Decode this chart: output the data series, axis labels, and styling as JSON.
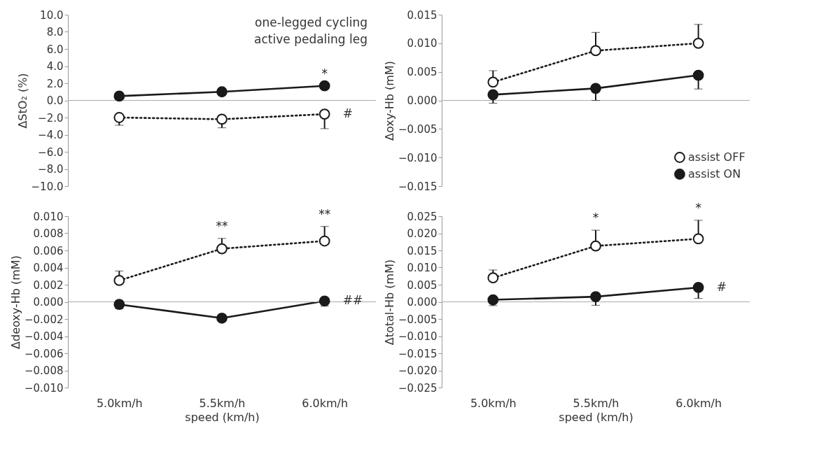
{
  "chart_data": [
    {
      "type": "line",
      "ylabel": "ΔStO₂ (%)",
      "categories": [
        "5.0km/h",
        "5.5km/h",
        "6.0km/h"
      ],
      "ylim": [
        -10,
        10
      ],
      "yticks": [
        {
          "value": -10,
          "label": "−10.0"
        },
        {
          "value": -8,
          "label": "−8.0"
        },
        {
          "value": -6,
          "label": "−6.0"
        },
        {
          "value": -4,
          "label": "−4.0"
        },
        {
          "value": -2,
          "label": "−2.0"
        },
        {
          "value": 0,
          "label": "0.0"
        },
        {
          "value": 2,
          "label": "2.0"
        },
        {
          "value": 4,
          "label": "4.0"
        },
        {
          "value": 6,
          "label": "6.0"
        },
        {
          "value": 8,
          "label": "8.0"
        },
        {
          "value": 10,
          "label": "10.0"
        }
      ],
      "series": [
        {
          "color": "#1a1a1a",
          "line_style": "dotted",
          "values": [
            -2.0,
            -2.2,
            -1.6
          ],
          "errors": [
            [
              -2.9,
              -2.0
            ],
            [
              -3.2,
              -2.2
            ],
            [
              -3.3,
              -1.6
            ]
          ]
        },
        {
          "color": "#1a1a1a",
          "line_style": "solid",
          "values": [
            0.5,
            1.0,
            1.7
          ]
        }
      ],
      "marker": "circle",
      "grid": false,
      "legend": false,
      "tick_labels": "y",
      "ref_lines": [
        {
          "axis": "y",
          "value": 0
        }
      ],
      "annotations": [
        "one-legged cycling",
        "active pedaling leg",
        {
          "text": "*",
          "x": "6.0km/h",
          "y": 1.7
        },
        {
          "text": "#",
          "x": "6.0km/h",
          "y": -1.6
        }
      ]
    },
    {
      "type": "line",
      "ylabel": "Δoxy-Hb (mM)",
      "categories": [
        "5.0km/h",
        "5.5km/h",
        "6.0km/h"
      ],
      "ylim": [
        -0.015,
        0.015
      ],
      "yticks": [
        {
          "value": -0.015,
          "label": "−0.015"
        },
        {
          "value": -0.01,
          "label": "−0.010"
        },
        {
          "value": -0.005,
          "label": "−0.005"
        },
        {
          "value": 0,
          "label": "0.000"
        },
        {
          "value": 0.005,
          "label": "0.005"
        },
        {
          "value": 0.01,
          "label": "0.010"
        },
        {
          "value": 0.015,
          "label": "0.015"
        }
      ],
      "series": [
        {
          "name": "assist OFF",
          "color": "#1a1a1a",
          "line_style": "dotted",
          "values": [
            0.0032,
            0.0087,
            0.01
          ],
          "errors": [
            [
              0.0032,
              0.0052
            ],
            [
              0.0087,
              0.0119
            ],
            [
              0.01,
              0.0133
            ]
          ]
        },
        {
          "name": "assist ON",
          "color": "#1a1a1a",
          "line_style": "solid",
          "values": [
            0.001,
            0.0021,
            0.0044
          ],
          "errors": [
            [
              -0.0005,
              0.001
            ],
            [
              0.0,
              0.0021
            ],
            [
              0.002,
              0.0044
            ]
          ]
        }
      ],
      "marker": "circle",
      "grid": false,
      "legend": "bottom right",
      "tick_labels": "y",
      "ref_lines": [
        {
          "axis": "y",
          "value": 0
        }
      ]
    },
    {
      "type": "line",
      "ylabel": "Δdeoxy-Hb (mM)",
      "xlabel": "speed (km/h)",
      "categories": [
        "5.0km/h",
        "5.5km/h",
        "6.0km/h"
      ],
      "ylim": [
        -0.01,
        0.01
      ],
      "yticks": [
        {
          "value": -0.01,
          "label": "−0.010"
        },
        {
          "value": -0.008,
          "label": "−0.008"
        },
        {
          "value": -0.006,
          "label": "−0.006"
        },
        {
          "value": -0.004,
          "label": "−0.004"
        },
        {
          "value": -0.002,
          "label": "−0.002"
        },
        {
          "value": 0,
          "label": "0.000"
        },
        {
          "value": 0.002,
          "label": "0.002"
        },
        {
          "value": 0.004,
          "label": "0.004"
        },
        {
          "value": 0.006,
          "label": "0.006"
        },
        {
          "value": 0.008,
          "label": "0.008"
        },
        {
          "value": 0.01,
          "label": "0.010"
        }
      ],
      "series": [
        {
          "color": "#1a1a1a",
          "line_style": "dotted",
          "values": [
            0.0025,
            0.0062,
            0.0071
          ],
          "errors": [
            [
              0.0025,
              0.0036
            ],
            [
              0.0062,
              0.0074
            ],
            [
              0.0071,
              0.0088
            ]
          ]
        },
        {
          "color": "#1a1a1a",
          "line_style": "solid",
          "values": [
            -0.0003,
            -0.0019,
            0.0001
          ],
          "errors": [
            [
              -0.0008,
              -0.0003
            ],
            [
              -0.0023,
              -0.0019
            ],
            [
              -0.0005,
              0.0001
            ]
          ]
        }
      ],
      "marker": "circle",
      "grid": false,
      "legend": false,
      "ref_lines": [
        {
          "axis": "y",
          "value": 0
        }
      ],
      "annotations": [
        {
          "text": "**",
          "x": "5.5km/h",
          "y": 0.0074
        },
        {
          "text": "**",
          "x": "6.0km/h",
          "y": 0.0088
        },
        {
          "text": "##",
          "x": "6.0km/h",
          "y": 0.0001
        }
      ]
    },
    {
      "type": "line",
      "ylabel": "Δtotal-Hb (mM)",
      "xlabel": "speed (km/h)",
      "categories": [
        "5.0km/h",
        "5.5km/h",
        "6.0km/h"
      ],
      "ylim": [
        -0.025,
        0.025
      ],
      "yticks": [
        {
          "value": -0.025,
          "label": "−0.025"
        },
        {
          "value": -0.02,
          "label": "−0.020"
        },
        {
          "value": -0.015,
          "label": "−0.015"
        },
        {
          "value": -0.01,
          "label": "−0.010"
        },
        {
          "value": -0.005,
          "label": "−0.005"
        },
        {
          "value": 0,
          "label": "0.000"
        },
        {
          "value": 0.005,
          "label": "0.005"
        },
        {
          "value": 0.01,
          "label": "0.010"
        },
        {
          "value": 0.015,
          "label": "0.015"
        },
        {
          "value": 0.02,
          "label": "0.020"
        },
        {
          "value": 0.025,
          "label": "0.025"
        }
      ],
      "series": [
        {
          "color": "#1a1a1a",
          "line_style": "dotted",
          "values": [
            0.007,
            0.0163,
            0.0184
          ],
          "errors": [
            [
              0.007,
              0.0093
            ],
            [
              0.0163,
              0.0209
            ],
            [
              0.0184,
              0.0238
            ]
          ]
        },
        {
          "color": "#1a1a1a",
          "line_style": "solid",
          "values": [
            0.0006,
            0.0015,
            0.0042
          ],
          "errors": [
            [
              -0.0011,
              0.0006
            ],
            [
              -0.001,
              0.0015
            ],
            [
              0.001,
              0.0042
            ]
          ]
        }
      ],
      "marker": "circle",
      "grid": false,
      "legend": false,
      "ref_lines": [
        {
          "axis": "y",
          "value": 0
        }
      ],
      "annotations": [
        {
          "text": "*",
          "x": "5.5km/h",
          "y": 0.0209
        },
        {
          "text": "*",
          "x": "6.0km/h",
          "y": 0.0238
        },
        {
          "text": "#",
          "x": "6.0km/h",
          "y": 0.0042
        }
      ]
    }
  ]
}
